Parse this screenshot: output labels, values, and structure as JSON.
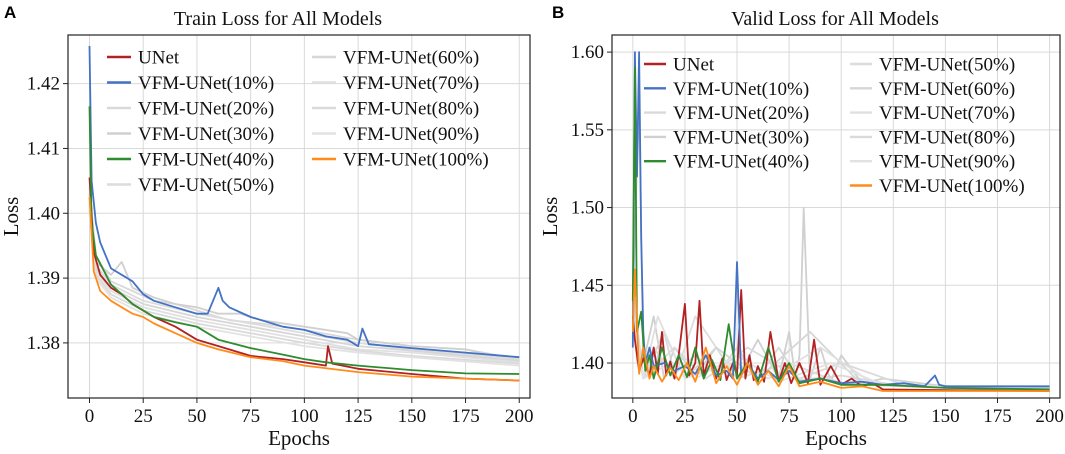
{
  "chart_data": [
    {
      "panel": "A",
      "type": "line",
      "title": "Train Loss for All Models",
      "xlabel": "Epochs",
      "ylabel": "Loss",
      "xlim": [
        -10,
        205
      ],
      "ylim": [
        1.3715,
        1.4275
      ],
      "xticks": [
        0,
        25,
        50,
        75,
        100,
        125,
        150,
        175,
        200
      ],
      "yticks": [
        1.38,
        1.39,
        1.4,
        1.41,
        1.42
      ],
      "ytick_labels": [
        "1.38",
        "1.39",
        "1.40",
        "1.41",
        "1.42"
      ],
      "grid": true,
      "legend_position": "top-right",
      "series": [
        {
          "name": "UNet",
          "color": "#b22222",
          "x": [
            0,
            2,
            5,
            10,
            15,
            20,
            25,
            30,
            40,
            50,
            60,
            75,
            90,
            100,
            110,
            111,
            113,
            125,
            150,
            175,
            200
          ],
          "y": [
            1.4055,
            1.394,
            1.3905,
            1.3885,
            1.3875,
            1.386,
            1.385,
            1.384,
            1.3825,
            1.3805,
            1.3795,
            1.378,
            1.3775,
            1.377,
            1.3765,
            1.3795,
            1.3768,
            1.376,
            1.3752,
            1.3745,
            1.3742
          ]
        },
        {
          "name": "VFM-UNet(10%)",
          "color": "#4472c4",
          "x": [
            0,
            1,
            3,
            5,
            10,
            15,
            20,
            25,
            30,
            40,
            50,
            55,
            60,
            62,
            65,
            75,
            90,
            100,
            110,
            120,
            125,
            127,
            130,
            150,
            175,
            200
          ],
          "y": [
            1.4258,
            1.405,
            1.3985,
            1.3955,
            1.3915,
            1.3905,
            1.3895,
            1.3875,
            1.3865,
            1.3855,
            1.3845,
            1.3845,
            1.3885,
            1.3865,
            1.3855,
            1.384,
            1.3825,
            1.382,
            1.381,
            1.3805,
            1.3795,
            1.3822,
            1.3798,
            1.3792,
            1.3785,
            1.3778
          ]
        },
        {
          "name": "VFM-UNet(20%)",
          "color": "#d9d9d9",
          "x": [
            0,
            3,
            10,
            20,
            30,
            40,
            50,
            65,
            80,
            100,
            125,
            150,
            175,
            200
          ],
          "y": [
            1.404,
            1.3935,
            1.3895,
            1.388,
            1.3865,
            1.386,
            1.385,
            1.3835,
            1.383,
            1.382,
            1.3805,
            1.3795,
            1.379,
            1.3775
          ]
        },
        {
          "name": "VFM-UNet(30%)",
          "color": "#d0d0d0",
          "x": [
            0,
            3,
            10,
            15,
            20,
            30,
            40,
            50,
            60,
            70,
            80,
            100,
            120,
            125,
            150,
            175,
            200
          ],
          "y": [
            1.403,
            1.3925,
            1.3905,
            1.3925,
            1.3885,
            1.387,
            1.386,
            1.3855,
            1.3845,
            1.3845,
            1.3835,
            1.3825,
            1.3815,
            1.3805,
            1.3795,
            1.379,
            1.3772
          ]
        },
        {
          "name": "VFM-UNet(40%)",
          "color": "#2e8b2e",
          "x": [
            0,
            1,
            3,
            10,
            20,
            30,
            40,
            50,
            60,
            75,
            90,
            100,
            110,
            125,
            150,
            175,
            200
          ],
          "y": [
            1.4165,
            1.3985,
            1.3935,
            1.389,
            1.386,
            1.384,
            1.3832,
            1.3825,
            1.3805,
            1.3792,
            1.3782,
            1.3775,
            1.377,
            1.3765,
            1.3758,
            1.3753,
            1.3752
          ]
        },
        {
          "name": "VFM-UNet(50%)",
          "color": "#dcdcdc",
          "x": [
            0,
            3,
            10,
            25,
            50,
            75,
            100,
            125,
            150,
            200
          ],
          "y": [
            1.4025,
            1.392,
            1.389,
            1.3865,
            1.3845,
            1.383,
            1.3815,
            1.38,
            1.379,
            1.3775
          ]
        },
        {
          "name": "VFM-UNet(60%)",
          "color": "#d6d6d6",
          "x": [
            0,
            3,
            10,
            25,
            50,
            75,
            100,
            125,
            150,
            200
          ],
          "y": [
            1.4015,
            1.3915,
            1.3885,
            1.386,
            1.384,
            1.3825,
            1.381,
            1.3795,
            1.3788,
            1.3772
          ]
        },
        {
          "name": "VFM-UNet(70%)",
          "color": "#e0e0e0",
          "x": [
            0,
            3,
            10,
            25,
            50,
            75,
            100,
            125,
            150,
            200
          ],
          "y": [
            1.401,
            1.391,
            1.388,
            1.3855,
            1.3835,
            1.382,
            1.3805,
            1.379,
            1.3785,
            1.377
          ]
        },
        {
          "name": "VFM-UNet(80%)",
          "color": "#dadada",
          "x": [
            0,
            3,
            10,
            25,
            50,
            75,
            100,
            125,
            150,
            200
          ],
          "y": [
            1.4005,
            1.3905,
            1.3875,
            1.385,
            1.383,
            1.3815,
            1.38,
            1.3788,
            1.378,
            1.3768
          ]
        },
        {
          "name": "VFM-UNet(90%)",
          "color": "#e2e2e2",
          "x": [
            0,
            3,
            10,
            25,
            50,
            75,
            100,
            125,
            150,
            200
          ],
          "y": [
            1.4,
            1.39,
            1.387,
            1.3845,
            1.3825,
            1.381,
            1.3795,
            1.3785,
            1.3778,
            1.3765
          ]
        },
        {
          "name": "VFM-UNet(100%)",
          "color": "#ff8c1a",
          "x": [
            0,
            2,
            5,
            10,
            15,
            20,
            25,
            30,
            40,
            50,
            60,
            75,
            90,
            100,
            125,
            150,
            175,
            200
          ],
          "y": [
            1.4025,
            1.391,
            1.388,
            1.3865,
            1.3855,
            1.3845,
            1.384,
            1.383,
            1.3815,
            1.38,
            1.379,
            1.3778,
            1.3772,
            1.3765,
            1.3755,
            1.3748,
            1.3745,
            1.3742
          ]
        }
      ]
    },
    {
      "panel": "B",
      "type": "line",
      "title": "Valid Loss for All Models",
      "xlabel": "Epochs",
      "ylabel": "Loss",
      "xlim": [
        -10,
        205
      ],
      "ylim": [
        1.3775,
        1.611
      ],
      "xticks": [
        0,
        25,
        50,
        75,
        100,
        125,
        150,
        175,
        200
      ],
      "yticks": [
        1.4,
        1.45,
        1.5,
        1.55,
        1.6
      ],
      "ytick_labels": [
        "1.40",
        "1.45",
        "1.50",
        "1.55",
        "1.60"
      ],
      "grid": true,
      "legend_position": "top-right",
      "series": [
        {
          "name": "UNet",
          "color": "#b22222",
          "x": [
            0,
            1,
            3,
            5,
            8,
            10,
            12,
            14,
            16,
            18,
            20,
            22,
            25,
            27,
            30,
            32,
            34,
            37,
            40,
            43,
            45,
            48,
            50,
            52,
            54,
            56,
            58,
            60,
            63,
            66,
            70,
            73,
            76,
            80,
            84,
            87,
            90,
            95,
            100,
            105,
            110,
            115,
            120,
            150,
            200
          ],
          "y": [
            1.43,
            1.415,
            1.395,
            1.403,
            1.392,
            1.41,
            1.393,
            1.42,
            1.392,
            1.401,
            1.39,
            1.405,
            1.438,
            1.392,
            1.4,
            1.44,
            1.392,
            1.405,
            1.39,
            1.403,
            1.389,
            1.4,
            1.392,
            1.447,
            1.39,
            1.405,
            1.389,
            1.398,
            1.388,
            1.42,
            1.388,
            1.4,
            1.387,
            1.4,
            1.387,
            1.415,
            1.386,
            1.398,
            1.386,
            1.39,
            1.385,
            1.387,
            1.383,
            1.3825,
            1.382
          ]
        },
        {
          "name": "VFM-UNet(10%)",
          "color": "#4472c4",
          "x": [
            0,
            1,
            2,
            3,
            4,
            5,
            6,
            8,
            10,
            15,
            20,
            25,
            30,
            35,
            40,
            45,
            48,
            50,
            52,
            55,
            60,
            65,
            70,
            75,
            80,
            90,
            100,
            110,
            120,
            130,
            140,
            145,
            147,
            150,
            175,
            200
          ],
          "y": [
            1.41,
            1.6,
            1.52,
            1.6,
            1.48,
            1.42,
            1.4,
            1.41,
            1.398,
            1.4,
            1.395,
            1.398,
            1.393,
            1.405,
            1.392,
            1.395,
            1.39,
            1.465,
            1.392,
            1.4,
            1.39,
            1.395,
            1.389,
            1.395,
            1.388,
            1.39,
            1.387,
            1.388,
            1.386,
            1.387,
            1.385,
            1.392,
            1.386,
            1.385,
            1.385,
            1.385
          ]
        },
        {
          "name": "VFM-UNet(20%)",
          "color": "#d9d9d9",
          "x": [
            0,
            2,
            5,
            10,
            15,
            20,
            30,
            40,
            50,
            60,
            70,
            80,
            100,
            125,
            150,
            200
          ],
          "y": [
            1.45,
            1.4,
            1.41,
            1.395,
            1.42,
            1.393,
            1.405,
            1.392,
            1.41,
            1.39,
            1.41,
            1.389,
            1.392,
            1.386,
            1.385,
            1.383
          ]
        },
        {
          "name": "VFM-UNet(30%)",
          "color": "#d0d0d0",
          "x": [
            0,
            3,
            5,
            10,
            15,
            20,
            30,
            40,
            50,
            60,
            70,
            75,
            78,
            80,
            82,
            85,
            90,
            95,
            100,
            110,
            120,
            150,
            200
          ],
          "y": [
            1.44,
            1.57,
            1.4,
            1.43,
            1.39,
            1.41,
            1.392,
            1.41,
            1.39,
            1.415,
            1.39,
            1.42,
            1.39,
            1.405,
            1.5,
            1.39,
            1.41,
            1.388,
            1.405,
            1.387,
            1.39,
            1.385,
            1.384
          ]
        },
        {
          "name": "VFM-UNet(40%)",
          "color": "#2e8b2e",
          "x": [
            0,
            1,
            2,
            4,
            6,
            8,
            10,
            14,
            18,
            22,
            26,
            30,
            34,
            38,
            42,
            46,
            50,
            55,
            60,
            65,
            70,
            75,
            80,
            90,
            100,
            120,
            150,
            200
          ],
          "y": [
            1.44,
            1.59,
            1.42,
            1.433,
            1.395,
            1.405,
            1.39,
            1.41,
            1.392,
            1.405,
            1.391,
            1.41,
            1.39,
            1.402,
            1.389,
            1.425,
            1.39,
            1.4,
            1.388,
            1.41,
            1.388,
            1.4,
            1.387,
            1.39,
            1.386,
            1.386,
            1.384,
            1.383
          ]
        },
        {
          "name": "VFM-UNet(50%)",
          "color": "#dcdcdc",
          "x": [
            0,
            5,
            10,
            20,
            30,
            50,
            75,
            100,
            150,
            200
          ],
          "y": [
            1.45,
            1.39,
            1.41,
            1.39,
            1.43,
            1.39,
            1.4,
            1.387,
            1.385,
            1.383
          ]
        },
        {
          "name": "VFM-UNet(60%)",
          "color": "#d6d6d6",
          "x": [
            0,
            5,
            15,
            25,
            40,
            60,
            85,
            110,
            150,
            200
          ],
          "y": [
            1.44,
            1.39,
            1.42,
            1.39,
            1.41,
            1.39,
            1.42,
            1.386,
            1.384,
            1.383
          ]
        },
        {
          "name": "VFM-UNet(70%)",
          "color": "#e0e0e0",
          "x": [
            0,
            5,
            12,
            25,
            45,
            65,
            90,
            115,
            150,
            200
          ],
          "y": [
            1.43,
            1.39,
            1.43,
            1.39,
            1.4,
            1.39,
            1.41,
            1.387,
            1.384,
            1.383
          ]
        },
        {
          "name": "VFM-UNet(80%)",
          "color": "#dadada",
          "x": [
            0,
            5,
            20,
            35,
            55,
            80,
            100,
            130,
            200
          ],
          "y": [
            1.42,
            1.39,
            1.41,
            1.39,
            1.41,
            1.39,
            1.4,
            1.386,
            1.383
          ]
        },
        {
          "name": "VFM-UNet(90%)",
          "color": "#e2e2e2",
          "x": [
            0,
            5,
            18,
            30,
            50,
            70,
            95,
            120,
            200
          ],
          "y": [
            1.43,
            1.39,
            1.4,
            1.39,
            1.405,
            1.388,
            1.4,
            1.386,
            1.383
          ]
        },
        {
          "name": "VFM-UNet(100%)",
          "color": "#ff8c1a",
          "x": [
            0,
            1,
            3,
            5,
            8,
            10,
            14,
            18,
            22,
            26,
            30,
            35,
            40,
            45,
            50,
            55,
            60,
            65,
            70,
            75,
            80,
            90,
            100,
            110,
            120,
            150,
            200
          ],
          "y": [
            1.42,
            1.46,
            1.393,
            1.41,
            1.39,
            1.398,
            1.388,
            1.397,
            1.389,
            1.4,
            1.388,
            1.41,
            1.387,
            1.398,
            1.386,
            1.4,
            1.386,
            1.395,
            1.385,
            1.398,
            1.385,
            1.388,
            1.384,
            1.385,
            1.382,
            1.382,
            1.382
          ]
        }
      ]
    }
  ]
}
